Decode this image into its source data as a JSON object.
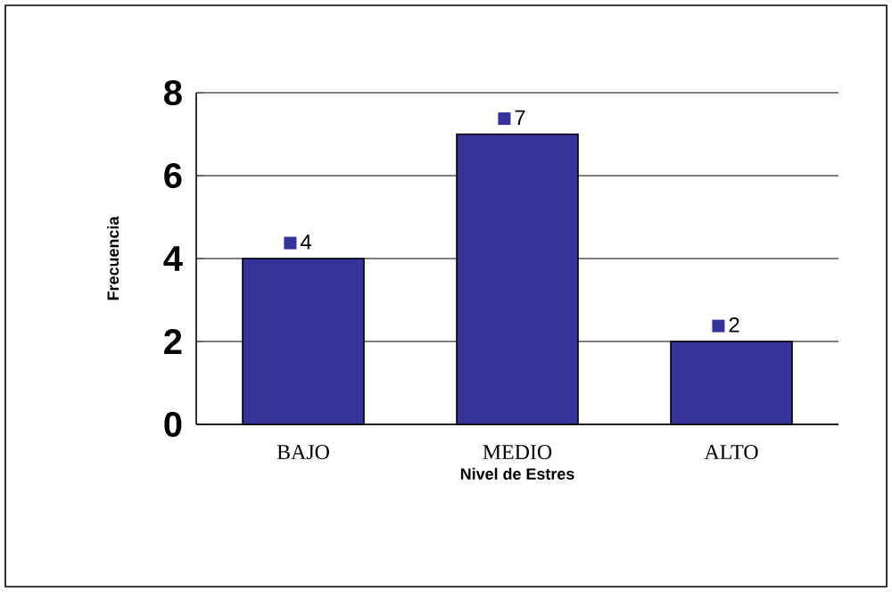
{
  "chart_data": {
    "type": "bar",
    "xlabel": "Nivel de Estres",
    "ylabel": "Frecuencia",
    "categories": [
      "BAJO",
      "MEDIO",
      "ALTO"
    ],
    "values": [
      4,
      7,
      2
    ],
    "color": "#333399",
    "ylim": [
      0,
      8
    ],
    "yticks": [
      0,
      2,
      4,
      6,
      8
    ],
    "grid": "y",
    "data_labels": true
  }
}
